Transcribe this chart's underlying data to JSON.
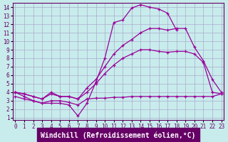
{
  "xlabel": "Windchill (Refroidissement éolien,°C)",
  "background_color": "#c8ecec",
  "grid_color": "#aaaacc",
  "line_color": "#990099",
  "xlim_min": -0.3,
  "xlim_max": 23.3,
  "ylim_min": 0.7,
  "ylim_max": 14.5,
  "xticks": [
    0,
    1,
    2,
    3,
    4,
    5,
    6,
    7,
    8,
    9,
    10,
    11,
    12,
    13,
    14,
    15,
    16,
    17,
    18,
    19,
    20,
    21,
    22,
    23
  ],
  "yticks": [
    1,
    2,
    3,
    4,
    5,
    6,
    7,
    8,
    9,
    10,
    11,
    12,
    13,
    14
  ],
  "line1_x": [
    0,
    1,
    2,
    3,
    4,
    5,
    6,
    7,
    8,
    9,
    10,
    11,
    12,
    13,
    14,
    15,
    16,
    17,
    18
  ],
  "line1_y": [
    4.0,
    3.5,
    3.0,
    2.7,
    2.7,
    2.7,
    2.5,
    1.2,
    2.7,
    5.2,
    8.0,
    12.2,
    12.5,
    13.9,
    14.3,
    14.0,
    13.8,
    13.3,
    11.3
  ],
  "line2_x": [
    0,
    1,
    2,
    3,
    4,
    5,
    6,
    7,
    8,
    9,
    10,
    11,
    12,
    13,
    14,
    15,
    16,
    17,
    18,
    19,
    20,
    21,
    22,
    23
  ],
  "line2_y": [
    4.0,
    3.8,
    3.5,
    3.2,
    4.0,
    3.5,
    3.5,
    3.2,
    4.5,
    5.5,
    7.0,
    8.5,
    9.5,
    10.2,
    11.0,
    11.5,
    11.5,
    11.3,
    11.5,
    11.5,
    9.3,
    7.7,
    5.5,
    4.0
  ],
  "line3_x": [
    0,
    1,
    2,
    3,
    4,
    5,
    6,
    7,
    8,
    9,
    10,
    11,
    12,
    13,
    14,
    15,
    16,
    17,
    18,
    19,
    20,
    21,
    22,
    23
  ],
  "line3_y": [
    4.0,
    3.8,
    3.5,
    3.2,
    3.8,
    3.5,
    3.5,
    3.2,
    4.0,
    5.0,
    6.2,
    7.2,
    8.0,
    8.5,
    9.0,
    9.0,
    8.8,
    8.7,
    8.8,
    8.8,
    8.5,
    7.5,
    4.0,
    3.8
  ],
  "line4_x": [
    0,
    1,
    2,
    3,
    4,
    5,
    6,
    7,
    8,
    9,
    10,
    11,
    12,
    13,
    14,
    15,
    16,
    17,
    18,
    19,
    20,
    21,
    22,
    23
  ],
  "line4_y": [
    3.5,
    3.2,
    3.0,
    2.7,
    3.0,
    3.0,
    2.8,
    2.5,
    3.2,
    3.3,
    3.3,
    3.4,
    3.4,
    3.5,
    3.5,
    3.5,
    3.5,
    3.5,
    3.5,
    3.5,
    3.5,
    3.5,
    3.5,
    3.8
  ],
  "ticklabel_fontsize": 5.5,
  "xlabel_fontsize": 7
}
